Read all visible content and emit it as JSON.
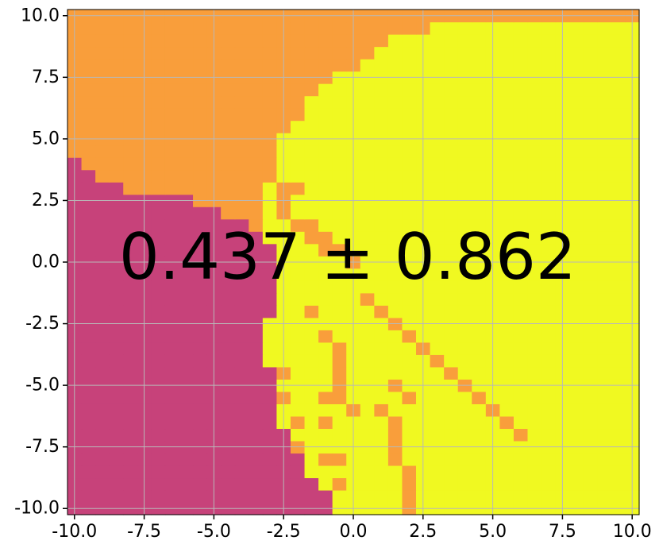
{
  "chart_data": {
    "type": "heatmap",
    "title": "",
    "xlabel": "",
    "ylabel": "",
    "xlim": [
      -10.25,
      10.25
    ],
    "ylim": [
      -10.25,
      10.25
    ],
    "grid": true,
    "x_ticks": [
      "-10.0",
      "-7.5",
      "-5.0",
      "-2.5",
      "0.0",
      "2.5",
      "5.0",
      "7.5",
      "10.0"
    ],
    "y_ticks": [
      "10.0",
      "7.5",
      "5.0",
      "2.5",
      "0.0",
      "-2.5",
      "-5.0",
      "-7.5",
      "-10.0"
    ],
    "x_tick_values": [
      -10,
      -7.5,
      -5,
      -2.5,
      0,
      2.5,
      5,
      7.5,
      10
    ],
    "y_tick_values": [
      10,
      7.5,
      5,
      2.5,
      0,
      -2.5,
      -5,
      -7.5,
      -10
    ],
    "annotation": "0.437 ± 0.862",
    "colors": {
      "class_0": "#c7427a",
      "class_1": "#f99e3b",
      "class_2": "#f0f921"
    },
    "grid_cells": {
      "x_range": [
        -10.25,
        10.25
      ],
      "y_range": [
        -10.25,
        10.25
      ],
      "cols": 41,
      "rows": 41,
      "background_class": 2,
      "region_class_0_boundary_x_by_row": [
        {
          "y": 4.0,
          "x_max": -10.0
        },
        {
          "y": 3.5,
          "x_max": -9.5
        },
        {
          "y": 3.0,
          "x_max": -8.5
        },
        {
          "y": 2.5,
          "x_max": -6.0
        },
        {
          "y": 2.0,
          "x_max": -5.0
        },
        {
          "y": 1.5,
          "x_max": -4.0
        },
        {
          "y": 1.0,
          "x_max": -3.5
        },
        {
          "y": 0.5,
          "x_max": -3.0
        },
        {
          "y": 0.0,
          "x_max": -3.0
        },
        {
          "y": -0.5,
          "x_max": -3.0
        },
        {
          "y": -1.0,
          "x_max": -3.0
        },
        {
          "y": -1.5,
          "x_max": -3.0
        },
        {
          "y": -2.0,
          "x_max": -3.0
        },
        {
          "y": -2.5,
          "x_max": -3.5
        },
        {
          "y": -3.0,
          "x_max": -3.5
        },
        {
          "y": -3.5,
          "x_max": -3.5
        },
        {
          "y": -4.0,
          "x_max": -3.5
        },
        {
          "y": -4.5,
          "x_max": -3.0
        },
        {
          "y": -5.0,
          "x_max": -3.0
        },
        {
          "y": -5.5,
          "x_max": -3.0
        },
        {
          "y": -6.0,
          "x_max": -3.0
        },
        {
          "y": -6.5,
          "x_max": -3.0
        },
        {
          "y": -7.0,
          "x_max": -2.5
        },
        {
          "y": -7.5,
          "x_max": -2.5
        },
        {
          "y": -8.0,
          "x_max": -2.0
        },
        {
          "y": -8.5,
          "x_max": -2.0
        },
        {
          "y": -9.0,
          "x_max": -1.5
        },
        {
          "y": -9.5,
          "x_max": -1.0
        },
        {
          "y": -10.0,
          "x_max": -1.0
        }
      ],
      "region_class_1_top_boundary_y_by_col": [
        {
          "x": -3.0,
          "y_min": 5.5
        },
        {
          "x": -2.5,
          "y_min": 5.5
        },
        {
          "x": -2.0,
          "y_min": 6.0
        },
        {
          "x": -1.5,
          "y_min": 7.0
        },
        {
          "x": -1.0,
          "y_min": 7.5
        },
        {
          "x": -0.5,
          "y_min": 8.0
        },
        {
          "x": 0.0,
          "y_min": 8.0
        },
        {
          "x": 0.5,
          "y_min": 8.5
        },
        {
          "x": 1.0,
          "y_min": 9.0
        },
        {
          "x": 1.5,
          "y_min": 9.5
        },
        {
          "x": 2.0,
          "y_min": 9.5
        },
        {
          "x": 2.5,
          "y_min": 10.0
        }
      ],
      "class_1_cells": [
        [
          -3.0,
          5.0
        ],
        [
          -3.0,
          4.5
        ],
        [
          -3.0,
          4.0
        ],
        [
          -3.5,
          3.5
        ],
        [
          -3.0,
          3.5
        ],
        [
          -2.5,
          3.0
        ],
        [
          -2.0,
          3.0
        ],
        [
          -2.5,
          2.5
        ],
        [
          -2.5,
          2.0
        ],
        [
          -2.0,
          1.5
        ],
        [
          -1.5,
          1.5
        ],
        [
          -1.5,
          1.0
        ],
        [
          -1.0,
          1.0
        ],
        [
          -1.0,
          0.5
        ],
        [
          -0.5,
          0.5
        ],
        [
          0.0,
          0.0
        ],
        [
          -1.5,
          -2.0
        ],
        [
          0.5,
          -1.5
        ],
        [
          1.0,
          -2.0
        ],
        [
          1.5,
          -2.5
        ],
        [
          2.0,
          -3.0
        ],
        [
          2.5,
          -3.5
        ],
        [
          3.0,
          -4.0
        ],
        [
          3.5,
          -4.5
        ],
        [
          4.0,
          -5.0
        ],
        [
          4.5,
          -5.5
        ],
        [
          5.0,
          -6.0
        ],
        [
          5.5,
          -6.5
        ],
        [
          6.0,
          -7.0
        ],
        [
          -1.0,
          -3.0
        ],
        [
          -0.5,
          -3.5
        ],
        [
          -0.5,
          -4.0
        ],
        [
          -0.5,
          -4.5
        ],
        [
          -0.5,
          -5.0
        ],
        [
          -2.5,
          -4.5
        ],
        [
          1.5,
          -5.0
        ],
        [
          2.0,
          -5.5
        ],
        [
          -2.5,
          -5.5
        ],
        [
          -1.0,
          -5.5
        ],
        [
          -0.5,
          -5.5
        ],
        [
          0.0,
          -6.0
        ],
        [
          1.0,
          -6.0
        ],
        [
          1.5,
          -6.5
        ],
        [
          -2.0,
          -6.5
        ],
        [
          -1.0,
          -6.5
        ],
        [
          1.5,
          -7.0
        ],
        [
          -2.0,
          -7.5
        ],
        [
          1.5,
          -7.5
        ],
        [
          -1.0,
          -8.0
        ],
        [
          -0.5,
          -8.0
        ],
        [
          1.5,
          -8.0
        ],
        [
          2.0,
          -8.5
        ],
        [
          -0.5,
          -9.0
        ],
        [
          2.0,
          -9.0
        ],
        [
          2.0,
          -9.5
        ],
        [
          2.0,
          -10.0
        ],
        [
          2.5,
          9.5
        ]
      ]
    }
  }
}
